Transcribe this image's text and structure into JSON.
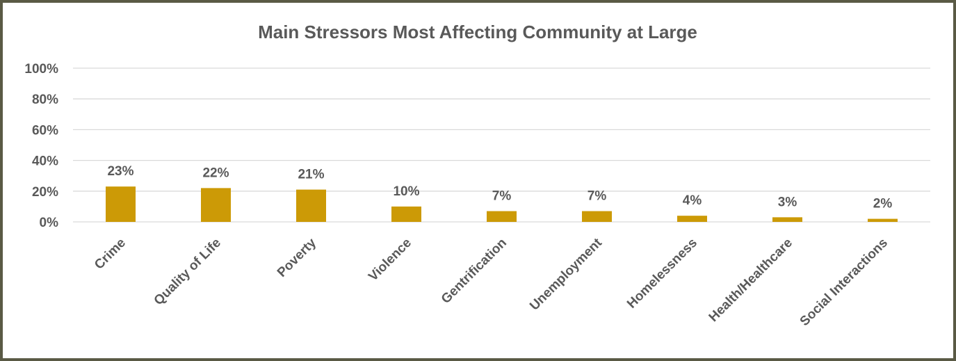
{
  "chart_data": {
    "type": "bar",
    "title": "Main Stressors Most Affecting Community at Large",
    "categories": [
      "Crime",
      "Quality of Life",
      "Poverty",
      "Violence",
      "Gentrification",
      "Unemployment",
      "Homelessness",
      "Health/Healthcare",
      "Social Interactions"
    ],
    "values": [
      23,
      22,
      21,
      10,
      7,
      7,
      4,
      3,
      2
    ],
    "data_labels": [
      "23%",
      "22%",
      "21%",
      "10%",
      "7%",
      "7%",
      "4%",
      "3%",
      "2%"
    ],
    "y_ticks": [
      "0%",
      "20%",
      "40%",
      "60%",
      "80%",
      "100%"
    ],
    "ylim": [
      0,
      100
    ],
    "xlabel": "",
    "ylabel": "",
    "grid": true,
    "legend": "none",
    "bar_color": "#cc9a06",
    "frame_color": "#5a5a45"
  }
}
